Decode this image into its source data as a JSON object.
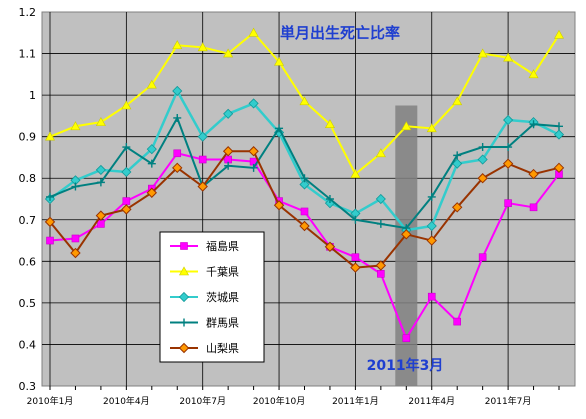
{
  "chart_data": {
    "type": "line",
    "title": "単月出生死亡比率",
    "annotation": "2011年3月",
    "highlight_x": 14,
    "xlabel": "",
    "ylabel": "",
    "ylim": [
      0.3,
      1.2
    ],
    "yticks": [
      "0.3",
      "0.4",
      "0.5",
      "0.6",
      "0.7",
      "0.8",
      "0.9",
      "1",
      "1.1",
      "1.2"
    ],
    "x_tick_labels": [
      {
        "x": 0,
        "label": "2010年1月"
      },
      {
        "x": 3,
        "label": "2010年4月"
      },
      {
        "x": 6,
        "label": "2010年7月"
      },
      {
        "x": 9,
        "label": "2010年10月"
      },
      {
        "x": 12,
        "label": "2011年1月"
      },
      {
        "x": 15,
        "label": "2011年4月"
      },
      {
        "x": 18,
        "label": "2011年7月"
      }
    ],
    "grid": true,
    "plot_background": "#c0c0c0",
    "legend_position": "left-center",
    "series": [
      {
        "name": "福島県",
        "color": "#ff00ff",
        "marker": "square",
        "values": [
          0.65,
          0.655,
          0.69,
          0.745,
          0.775,
          0.86,
          0.845,
          0.845,
          0.84,
          0.745,
          0.72,
          0.635,
          0.61,
          0.57,
          0.415,
          0.515,
          0.455,
          0.61,
          0.74,
          0.73,
          0.81
        ]
      },
      {
        "name": "千葉県",
        "color": "#ffff00",
        "marker": "triangle",
        "values": [
          0.9,
          0.925,
          0.935,
          0.975,
          1.025,
          1.12,
          1.115,
          1.1,
          1.15,
          1.08,
          0.985,
          0.93,
          0.81,
          0.86,
          0.925,
          0.92,
          0.985,
          1.1,
          1.09,
          1.05,
          1.145
        ]
      },
      {
        "name": "茨城県",
        "color": "#33cccc",
        "marker": "diamond",
        "values": [
          0.75,
          0.795,
          0.82,
          0.815,
          0.87,
          1.01,
          0.9,
          0.955,
          0.98,
          0.91,
          0.785,
          0.74,
          0.715,
          0.75,
          0.675,
          0.685,
          0.835,
          0.845,
          0.94,
          0.935,
          0.905
        ]
      },
      {
        "name": "群馬県",
        "color": "#008080",
        "marker": "plus",
        "values": [
          0.755,
          0.78,
          0.79,
          0.875,
          0.835,
          0.945,
          0.78,
          0.83,
          0.825,
          0.92,
          0.8,
          0.75,
          0.7,
          0.69,
          0.68,
          0.755,
          0.855,
          0.875,
          0.875,
          0.93,
          0.925
        ]
      },
      {
        "name": "山梨県",
        "color": "#993300",
        "marker": "diamond-orange",
        "values": [
          0.695,
          0.62,
          0.71,
          0.725,
          0.765,
          0.825,
          0.78,
          0.865,
          0.865,
          0.735,
          0.685,
          0.635,
          0.585,
          0.59,
          0.665,
          0.65,
          0.73,
          0.8,
          0.835,
          0.81,
          0.825
        ]
      }
    ]
  }
}
